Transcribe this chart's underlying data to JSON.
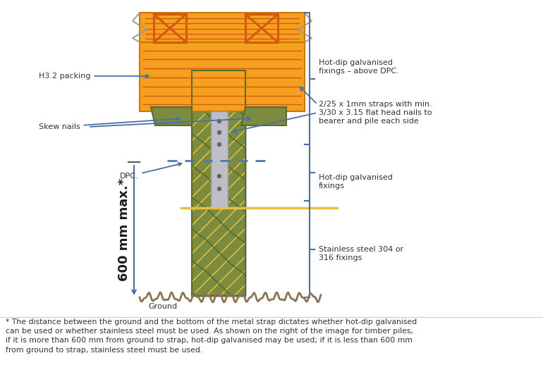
{
  "bg_color": "#ffffff",
  "orange_color": "#F5A020",
  "dark_orange": "#CC7700",
  "red_orange": "#D45A10",
  "olive_color": "#7B8C3E",
  "olive_dark": "#5A6B2A",
  "gray_metal": "#BEBEC8",
  "blue_arrow": "#4A6FA5",
  "dashed_blue": "#5577AA",
  "brown_ground": "#8B7355",
  "annotation_color": "#333333",
  "yellow_line": "#E8C040",
  "footnote_text": "* The distance between the ground and the bottom of the metal strap dictates whether hot-dip galvanised\ncan be used or whether stainless steel must be used. As shown on the right of the image for timber piles,\nif it is more than 600 mm from ground to strap, hot-dip galvanised may be used; if it is less than 600 mm\nfrom ground to strap, stainless steel must be used.",
  "label_h32": "H3.2 packing",
  "label_skew": "Skew nails",
  "label_dpc": "DPC.",
  "label_hot_above": "Hot-dip galvanised\nfixings – above DPC.",
  "label_straps": "2/25 x 1mm straps with min.\n3/30 x 3.15 flat head nails to\nbearer and pile each side",
  "label_hot_below": "Hot-dip galvanised\nfixings",
  "label_stainless": "Stainless steel 304 or\n316 fixings",
  "label_ground": "Ground",
  "label_600": "600 mm max.*"
}
